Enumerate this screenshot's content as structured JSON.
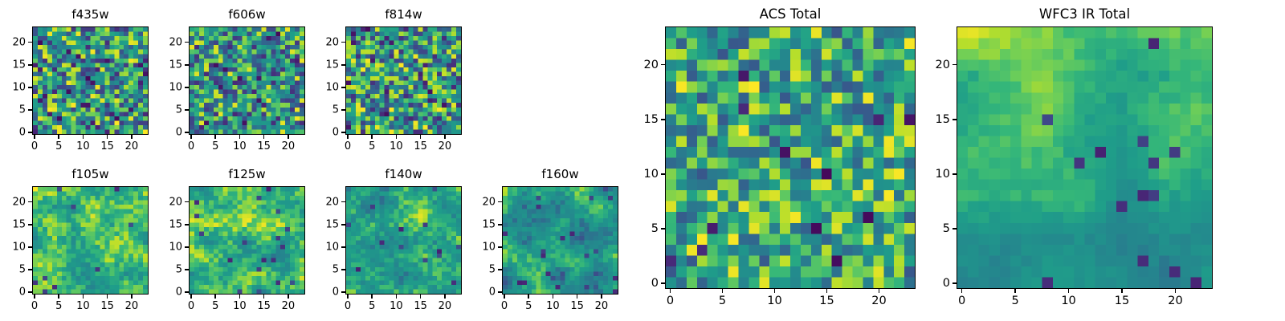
{
  "figure": {
    "background": "#ffffff",
    "panel_titles": [
      "f435w",
      "f606w",
      "f814w",
      "f105w",
      "f125w",
      "f140w",
      "f160w",
      "ACS Total",
      "WFC3 IR Total"
    ]
  },
  "colors": {
    "background": "#ffffff",
    "axis": "#000000",
    "text": "#000000",
    "viridis_stops": [
      "#440154",
      "#482878",
      "#3e4989",
      "#31688e",
      "#26828e",
      "#21918c",
      "#1f9e89",
      "#35b779",
      "#6ece58",
      "#b5de2b",
      "#fde725"
    ]
  },
  "chart_data": [
    {
      "title": "f435w",
      "type": "heatmap",
      "shape": [
        24,
        24
      ],
      "x_ticks": [
        0,
        5,
        10,
        15,
        20
      ],
      "y_ticks": [
        0,
        5,
        10,
        15,
        20
      ],
      "xlim": [
        -0.5,
        23.5
      ],
      "ylim": [
        -0.5,
        23.5
      ],
      "colormap": "viridis",
      "grid": false,
      "legend": false,
      "generator": {
        "mode": "speckle",
        "seed": 101,
        "base": 0.52,
        "amp": 0.4,
        "dark_prob": 0.05,
        "bright_prob": 0.07
      }
    },
    {
      "title": "f606w",
      "type": "heatmap",
      "shape": [
        24,
        24
      ],
      "x_ticks": [
        0,
        5,
        10,
        15,
        20
      ],
      "y_ticks": [
        0,
        5,
        10,
        15,
        20
      ],
      "xlim": [
        -0.5,
        23.5
      ],
      "ylim": [
        -0.5,
        23.5
      ],
      "colormap": "viridis",
      "grid": false,
      "legend": false,
      "generator": {
        "mode": "speckle",
        "seed": 102,
        "base": 0.5,
        "amp": 0.38,
        "dark_prob": 0.04,
        "bright_prob": 0.05
      }
    },
    {
      "title": "f814w",
      "type": "heatmap",
      "shape": [
        24,
        24
      ],
      "x_ticks": [
        0,
        5,
        10,
        15,
        20
      ],
      "y_ticks": [
        0,
        5,
        10,
        15,
        20
      ],
      "xlim": [
        -0.5,
        23.5
      ],
      "ylim": [
        -0.5,
        23.5
      ],
      "colormap": "viridis",
      "grid": false,
      "legend": false,
      "generator": {
        "mode": "speckle",
        "seed": 103,
        "base": 0.52,
        "amp": 0.4,
        "dark_prob": 0.05,
        "bright_prob": 0.07
      }
    },
    {
      "title": "f105w",
      "type": "heatmap",
      "shape": [
        24,
        24
      ],
      "x_ticks": [
        0,
        5,
        10,
        15,
        20
      ],
      "y_ticks": [
        0,
        5,
        10,
        15,
        20
      ],
      "xlim": [
        -0.5,
        23.5
      ],
      "ylim": [
        -0.5,
        23.5
      ],
      "colormap": "viridis",
      "grid": false,
      "legend": false,
      "generator": {
        "mode": "smooth",
        "seed": 104,
        "base": 0.68,
        "amp": 0.22,
        "jitter": 0.14,
        "coarse": 6,
        "dark_prob": 0.02
      }
    },
    {
      "title": "f125w",
      "type": "heatmap",
      "shape": [
        24,
        24
      ],
      "x_ticks": [
        0,
        5,
        10,
        15,
        20
      ],
      "y_ticks": [
        0,
        5,
        10,
        15,
        20
      ],
      "xlim": [
        -0.5,
        23.5
      ],
      "ylim": [
        -0.5,
        23.5
      ],
      "colormap": "viridis",
      "grid": false,
      "legend": false,
      "generator": {
        "mode": "smooth",
        "seed": 105,
        "base": 0.66,
        "amp": 0.24,
        "jitter": 0.14,
        "coarse": 6,
        "dark_prob": 0.03
      }
    },
    {
      "title": "f140w",
      "type": "heatmap",
      "shape": [
        24,
        24
      ],
      "x_ticks": [
        0,
        5,
        10,
        15,
        20
      ],
      "y_ticks": [
        0,
        5,
        10,
        15,
        20
      ],
      "xlim": [
        -0.5,
        23.5
      ],
      "ylim": [
        -0.5,
        23.5
      ],
      "colormap": "viridis",
      "grid": false,
      "legend": false,
      "generator": {
        "mode": "smooth",
        "seed": 106,
        "base": 0.62,
        "amp": 0.24,
        "jitter": 0.14,
        "coarse": 6,
        "dark_prob": 0.03
      }
    },
    {
      "title": "f160w",
      "type": "heatmap",
      "shape": [
        24,
        24
      ],
      "x_ticks": [
        0,
        5,
        10,
        15,
        20
      ],
      "y_ticks": [
        0,
        5,
        10,
        15,
        20
      ],
      "xlim": [
        -0.5,
        23.5
      ],
      "ylim": [
        -0.5,
        23.5
      ],
      "colormap": "viridis",
      "grid": false,
      "legend": false,
      "generator": {
        "mode": "smooth",
        "seed": 107,
        "base": 0.58,
        "amp": 0.26,
        "jitter": 0.12,
        "coarse": 6,
        "dark_prob": 0.03,
        "grad_y": -0.06
      }
    },
    {
      "title": "ACS Total",
      "type": "heatmap",
      "shape": [
        24,
        24
      ],
      "x_ticks": [
        0,
        5,
        10,
        15,
        20
      ],
      "y_ticks": [
        0,
        5,
        10,
        15,
        20
      ],
      "xlim": [
        -0.5,
        23.5
      ],
      "ylim": [
        -0.5,
        23.5
      ],
      "colormap": "viridis",
      "grid": false,
      "legend": false,
      "generator": {
        "mode": "speckle",
        "seed": 108,
        "base": 0.58,
        "amp": 0.34,
        "dark_prob": 0.035,
        "bright_prob": 0.09
      }
    },
    {
      "title": "WFC3 IR Total",
      "type": "heatmap",
      "shape": [
        24,
        24
      ],
      "x_ticks": [
        0,
        5,
        10,
        15,
        20
      ],
      "y_ticks": [
        0,
        5,
        10,
        15,
        20
      ],
      "xlim": [
        -0.5,
        23.5
      ],
      "ylim": [
        -0.5,
        23.5
      ],
      "colormap": "viridis",
      "grid": false,
      "legend": false,
      "generator": {
        "mode": "smooth",
        "seed": 109,
        "base": 0.82,
        "amp": 0.15,
        "jitter": 0.05,
        "coarse": 6,
        "grad_y": -0.3,
        "grad_x": -0.06,
        "dark_prob": 0.04,
        "dark_bias": true
      }
    }
  ]
}
